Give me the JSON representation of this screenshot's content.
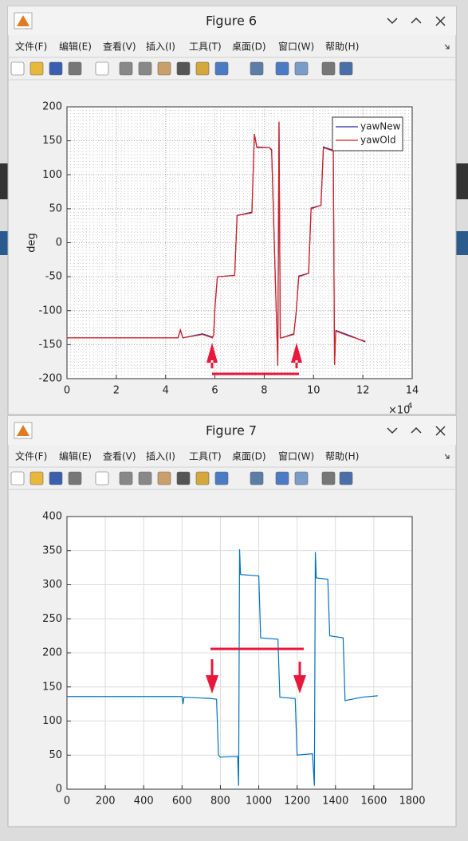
{
  "windows": [
    {
      "title": "Figure 6",
      "menu": [
        "文件(F)",
        "编辑(E)",
        "查看(V)",
        "插入(I)",
        "工具(T)",
        "桌面(D)",
        "窗口(W)",
        "帮助(H)"
      ]
    },
    {
      "title": "Figure 7",
      "menu": [
        "文件(F)",
        "编辑(E)",
        "查看(V)",
        "插入(I)",
        "工具(T)",
        "桌面(D)",
        "窗口(W)",
        "帮助(H)"
      ]
    }
  ],
  "chart_data": [
    {
      "type": "line",
      "ylabel": "deg",
      "x_multiplier": {
        "base": "×10",
        "exponent": "4"
      },
      "x": [
        0,
        4.5,
        4.6,
        4.7,
        5.5,
        5.9,
        5.95,
        6.0,
        6.1,
        6.8,
        6.9,
        7.5,
        7.6,
        7.7,
        8.2,
        8.3,
        8.55,
        8.6,
        8.65,
        8.7,
        9.2,
        9.3,
        9.4,
        9.8,
        9.9,
        10.3,
        10.4,
        10.8,
        10.85,
        10.9,
        11.5,
        12.1
      ],
      "series": [
        {
          "name": "yawNew",
          "color": "#1f2a9c",
          "values": [
            -140,
            -140,
            -129,
            -140,
            -134,
            -139,
            -135,
            -96,
            -50,
            -48,
            40,
            45,
            160,
            141,
            140,
            137,
            -181,
            178,
            -140,
            -140,
            -134,
            -101,
            -49,
            -45,
            51,
            55,
            141,
            136,
            -180,
            -129,
            -137,
            -146
          ]
        },
        {
          "name": "yawOld",
          "color": "#d81f1f",
          "values": [
            -140,
            -140,
            -128,
            -140,
            -135,
            -140,
            -135,
            -95,
            -50,
            -48,
            40,
            44,
            160,
            140,
            140,
            136,
            -180,
            178,
            -140,
            -140,
            -135,
            -100,
            -50,
            -45,
            50,
            55,
            140,
            135,
            -180,
            -130,
            -138,
            -145
          ]
        }
      ],
      "xlim": [
        0,
        14
      ],
      "ylim": [
        -200,
        200
      ],
      "xticks": [
        0,
        2,
        4,
        6,
        8,
        10,
        12,
        14
      ],
      "yticks": [
        -200,
        -150,
        -100,
        -50,
        0,
        50,
        100,
        150,
        200
      ],
      "grid": "dotted",
      "legend": "top-right"
    },
    {
      "type": "line",
      "x": [
        0,
        600,
        605,
        610,
        750,
        780,
        790,
        800,
        890,
        895,
        900,
        905,
        1000,
        1010,
        1100,
        1110,
        1190,
        1200,
        1280,
        1290,
        1295,
        1300,
        1360,
        1370,
        1440,
        1450,
        1540,
        1620
      ],
      "series": [
        {
          "color": "#0072bd",
          "values": [
            136,
            136,
            125,
            135,
            133,
            132,
            50,
            47,
            48,
            5,
            352,
            315,
            313,
            222,
            220,
            135,
            133,
            50,
            52,
            5,
            348,
            310,
            308,
            225,
            222,
            130,
            135,
            137
          ]
        }
      ],
      "xlim": [
        0,
        1800
      ],
      "ylim": [
        0,
        400
      ],
      "xticks": [
        0,
        200,
        400,
        600,
        800,
        1000,
        1200,
        1400,
        1600,
        1800
      ],
      "yticks": [
        0,
        50,
        100,
        150,
        200,
        250,
        300,
        350,
        400
      ],
      "grid": "solid"
    }
  ]
}
